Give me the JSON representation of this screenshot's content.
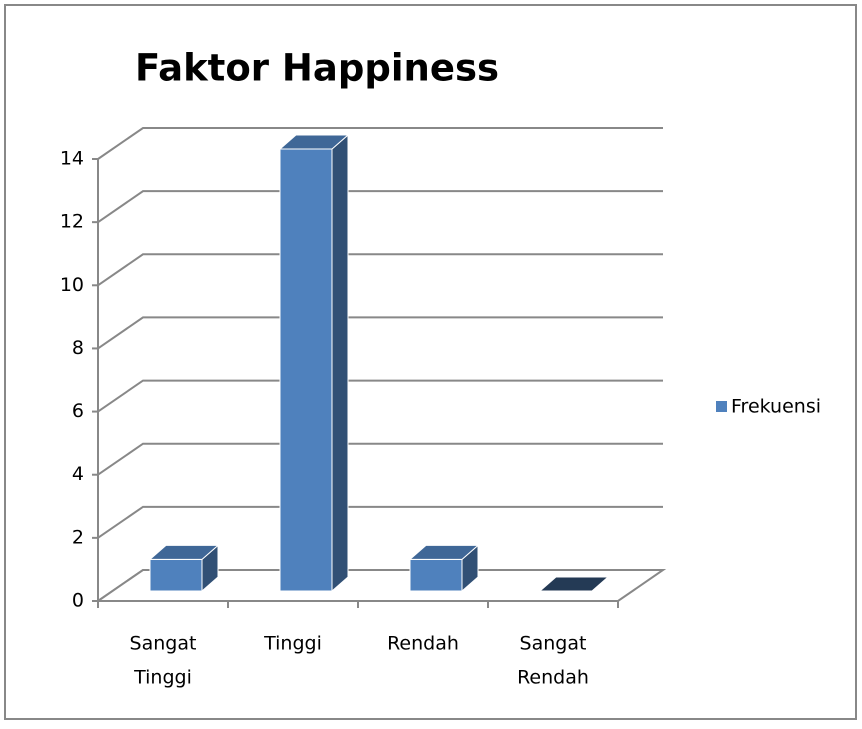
{
  "chart_data": {
    "type": "bar3d",
    "title": "Faktor Happiness",
    "categories": [
      [
        "Sangat",
        "Tinggi"
      ],
      [
        "Tinggi"
      ],
      [
        "Rendah"
      ],
      [
        "Sangat",
        "Rendah"
      ]
    ],
    "series": [
      {
        "name": "Frekuensi",
        "color": "#4f81bd",
        "values": [
          1,
          14,
          1,
          0
        ]
      }
    ],
    "ylim": [
      0,
      14
    ],
    "yticks": [
      0,
      2,
      4,
      6,
      8,
      10,
      12,
      14
    ],
    "grid": true,
    "legend": "right"
  }
}
